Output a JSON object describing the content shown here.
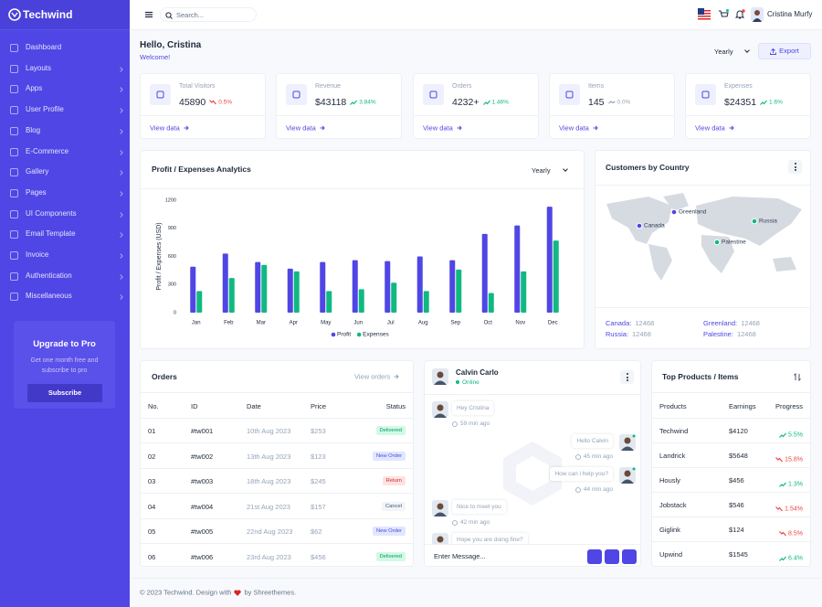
{
  "brand": "Techwind",
  "sidebar": {
    "menu": [
      "Dashboard",
      "Layouts",
      "Apps",
      "User Profile",
      "Blog",
      "E-Commerce",
      "Gallery",
      "Pages",
      "UI Components",
      "Email Template",
      "Invoice",
      "Authentication",
      "Miscellaneous"
    ],
    "promo": {
      "title": "Upgrade to Pro",
      "text": "Get one month free and subscribe to pro",
      "button": "Subscribe"
    }
  },
  "topbar": {
    "search": "Search...",
    "user": "Cristina Murfy"
  },
  "header": {
    "title": "Hello, Cristina",
    "subtitle": "Welcome!",
    "period": "Yearly",
    "export": "Export"
  },
  "stats": [
    {
      "label": "Total Visitors",
      "value": "45890",
      "change": "0.5%",
      "trend": "down",
      "link": "View data"
    },
    {
      "label": "Revenue",
      "value": "$43118",
      "change": "3.84%",
      "trend": "up",
      "link": "View data"
    },
    {
      "label": "Orders",
      "value": "4232+",
      "change": "1.46%",
      "trend": "up",
      "link": "View data"
    },
    {
      "label": "Items",
      "value": "145",
      "change": "0.0%",
      "trend": "flat",
      "link": "View data"
    },
    {
      "label": "Expenses",
      "value": "$24351",
      "change": "1.6%",
      "trend": "up",
      "link": "View data"
    }
  ],
  "chart_data": {
    "type": "bar",
    "title": "Profit / Expenses Analytics",
    "period": "Yearly",
    "y_label": "Profit / Expenses (USD)",
    "categories": [
      "Jan",
      "Feb",
      "Mar",
      "Apr",
      "May",
      "Jun",
      "Jul",
      "Aug",
      "Sep",
      "Oct",
      "Nov",
      "Dec"
    ],
    "series": [
      {
        "name": "Profit",
        "color": "#4f46e5",
        "values": [
          490,
          630,
          540,
          470,
          540,
          560,
          550,
          600,
          560,
          840,
          930,
          1130
        ]
      },
      {
        "name": "Expenses",
        "color": "#10b981",
        "values": [
          230,
          370,
          510,
          440,
          230,
          250,
          320,
          230,
          460,
          210,
          440,
          770
        ]
      }
    ],
    "ylim": [
      0,
      1200
    ],
    "yticks": [
      0,
      300,
      600,
      900,
      1200
    ],
    "grid": false
  },
  "countries": {
    "title": "Customers by Country",
    "map_labels": [
      {
        "name": "Greenland",
        "color": "#4f46e5"
      },
      {
        "name": "Canada",
        "color": "#4f46e5"
      },
      {
        "name": "Russia",
        "color": "#10b981"
      },
      {
        "name": "Palestine",
        "color": "#10b981"
      }
    ],
    "legend": [
      {
        "label": "Canada:",
        "value": 12468
      },
      {
        "label": "Greenland:",
        "value": 12468
      },
      {
        "label": "Russia:",
        "value": 12468
      },
      {
        "label": "Palestine:",
        "value": 12468
      }
    ]
  },
  "orders": {
    "title": "Orders",
    "link": "View orders",
    "columns": [
      "No.",
      "ID",
      "Date",
      "Price",
      "Status"
    ],
    "rows": [
      [
        "01",
        "#tw001",
        "10th Aug 2023",
        "$253",
        "Delivered"
      ],
      [
        "02",
        "#tw002",
        "13th Aug 2023",
        "$123",
        "New Order"
      ],
      [
        "03",
        "#tw003",
        "18th Aug 2023",
        "$245",
        "Return"
      ],
      [
        "04",
        "#tw004",
        "21st Aug 2023",
        "$157",
        "Cancel"
      ],
      [
        "05",
        "#tw005",
        "22nd Aug 2023",
        "$62",
        "New Order"
      ],
      [
        "06",
        "#tw006",
        "23rd Aug 2023",
        "$456",
        "Delivered"
      ]
    ]
  },
  "chat": {
    "name": "Calvin Carlo",
    "status": "Online",
    "placeholder": "Enter Message...",
    "messages": [
      {
        "from": "them",
        "text": "Hey Cristina",
        "time": "59 min ago"
      },
      {
        "from": "me",
        "text": "Hello Calvin",
        "time": "45 min ago"
      },
      {
        "from": "me",
        "text": "How can i help you?",
        "time": "44 min ago"
      },
      {
        "from": "them",
        "text": "Nice to meet you",
        "time": "42 min ago"
      },
      {
        "from": "them",
        "text": "Hope you are doing fine?"
      }
    ]
  },
  "products": {
    "title": "Top Products / Items",
    "columns": [
      "Products",
      "Earnings",
      "Progress"
    ],
    "rows": [
      {
        "name": "Techwind",
        "earnings": "$4120",
        "progress": "5.5%",
        "trend": "up"
      },
      {
        "name": "Landrick",
        "earnings": "$5648",
        "progress": "15.8%",
        "trend": "down"
      },
      {
        "name": "Hously",
        "earnings": "$456",
        "progress": "1.3%",
        "trend": "up"
      },
      {
        "name": "Jobstack",
        "earnings": "$546",
        "progress": "1.54%",
        "trend": "down"
      },
      {
        "name": "Giglink",
        "earnings": "$124",
        "progress": "8.5%",
        "trend": "down"
      },
      {
        "name": "Upwind",
        "earnings": "$1545",
        "progress": "6.4%",
        "trend": "up"
      }
    ]
  },
  "footer": {
    "text": "© 2023 Techwind. Design with",
    "by": "by Shreethemes."
  }
}
